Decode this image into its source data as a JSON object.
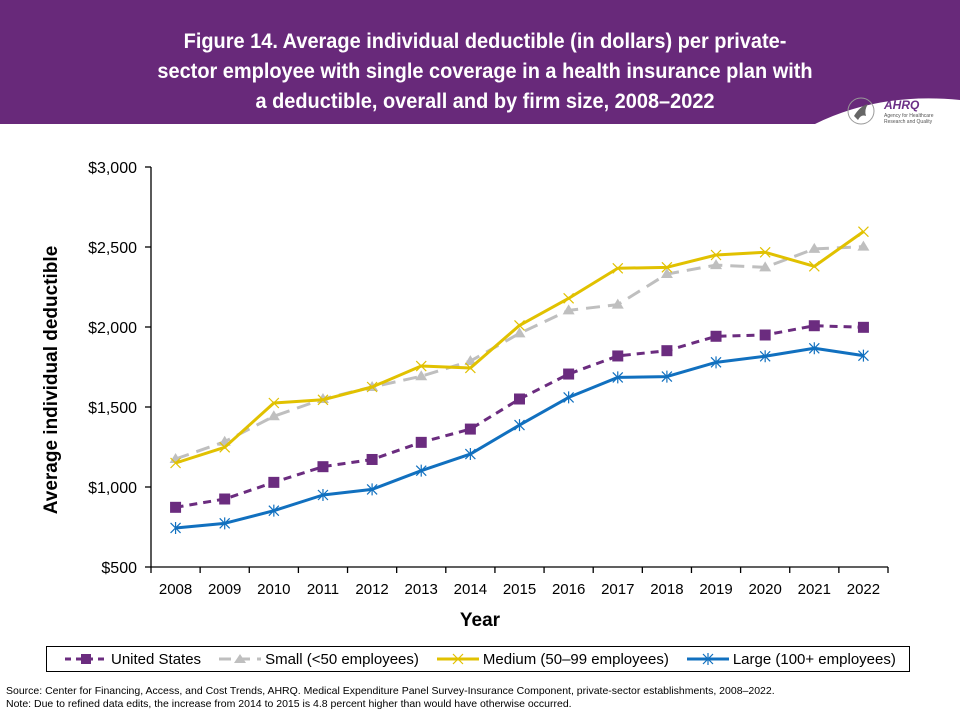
{
  "header": {
    "title_lines": [
      "Figure 14. Average individual deductible (in dollars) per private-",
      "sector employee with single coverage in a health insurance plan with",
      "a deductible, overall and  by firm size, 2008–2022"
    ],
    "banner_color": "#68297a",
    "logo": {
      "name": "AHRQ",
      "subtitle": "Agency for Healthcare Research and Quality"
    }
  },
  "chart_data": {
    "type": "line",
    "title": "Figure 14. Average individual deductible (in dollars) per private-sector employee with single coverage in a health insurance plan with a deductible, overall and by firm size, 2008–2022",
    "xlabel": "Year",
    "ylabel": "Average individual deductible",
    "categories": [
      "2008",
      "2009",
      "2010",
      "2011",
      "2012",
      "2013",
      "2014",
      "2015",
      "2016",
      "2017",
      "2018",
      "2019",
      "2020",
      "2021",
      "2022"
    ],
    "ylim": [
      500,
      3000
    ],
    "yticks": [
      500,
      1000,
      1500,
      2000,
      2500,
      3000
    ],
    "ytick_labels": [
      "$500",
      "$1,000",
      "$1,500",
      "$2,000",
      "$2,500",
      "$3,000"
    ],
    "grid": false,
    "legend_position": "bottom",
    "series": [
      {
        "name": "United States",
        "color": "#6b2c7f",
        "style": "dashed",
        "marker": "square",
        "values": [
          873,
          925,
          1029,
          1127,
          1172,
          1279,
          1362,
          1550,
          1706,
          1819,
          1852,
          1942,
          1950,
          2008,
          1998
        ]
      },
      {
        "name": "Small (<50 employees)",
        "color": "#bfbfbf",
        "style": "dashed",
        "marker": "triangle",
        "values": [
          1175,
          1283,
          1442,
          1550,
          1625,
          1692,
          1787,
          1960,
          2104,
          2140,
          2331,
          2387,
          2373,
          2488,
          2502
        ]
      },
      {
        "name": "Medium (50–99 employees)",
        "color": "#e1c100",
        "style": "solid",
        "marker": "x",
        "values": [
          1150,
          1248,
          1525,
          1545,
          1625,
          1756,
          1744,
          2010,
          2179,
          2367,
          2373,
          2450,
          2467,
          2379,
          2596
        ]
      },
      {
        "name": "Large (100+ employees)",
        "color": "#1170bf",
        "style": "solid",
        "marker": "asterisk",
        "values": [
          744,
          773,
          852,
          950,
          985,
          1102,
          1206,
          1387,
          1560,
          1685,
          1690,
          1779,
          1817,
          1867,
          1821
        ]
      }
    ]
  },
  "footer": {
    "source": "Source: Center for Financing, Access, and Cost Trends, AHRQ. Medical Expenditure Panel Survey-Insurance Component, private-sector establishments, 2008–2022.",
    "note": "Note: Due to refined data edits, the increase from 2014 to 2015 is 4.8 percent higher than would have otherwise occurred."
  }
}
